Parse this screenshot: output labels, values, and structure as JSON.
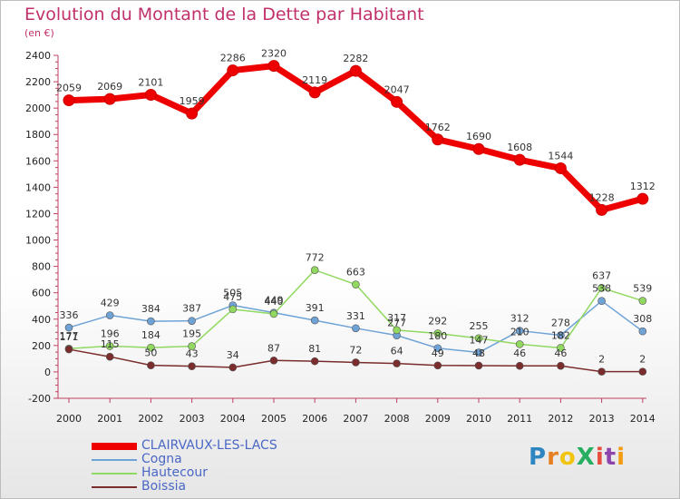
{
  "title": "Evolution du Montant de la Dette par Habitant",
  "subtitle": "(en €)",
  "brand": "ProXiti",
  "chart_data": {
    "type": "line",
    "categories": [
      "2000",
      "2001",
      "2002",
      "2003",
      "2004",
      "2005",
      "2006",
      "2007",
      "2008",
      "2009",
      "2010",
      "2011",
      "2012",
      "2013",
      "2014"
    ],
    "ylim": [
      -200,
      2400
    ],
    "yticks": [
      -200,
      0,
      200,
      400,
      600,
      800,
      1000,
      1200,
      1400,
      1600,
      1800,
      2000,
      2200,
      2400
    ],
    "grid": false,
    "legend_position": "bottom-left",
    "series": [
      {
        "name": "CLAIRVAUX-LES-LACS",
        "color": "#ee0000",
        "values": [
          2059,
          2069,
          2101,
          1959,
          2286,
          2320,
          2119,
          2282,
          2047,
          1762,
          1690,
          1608,
          1544,
          1228,
          1312
        ]
      },
      {
        "name": "Cogna",
        "color": "#6fa3d6",
        "values": [
          336,
          429,
          384,
          387,
          505,
          449,
          391,
          331,
          277,
          180,
          147,
          312,
          278,
          538,
          308
        ]
      },
      {
        "name": "Hautecour",
        "color": "#90d860",
        "values": [
          177,
          196,
          184,
          195,
          475,
          440,
          772,
          663,
          317,
          292,
          255,
          210,
          182,
          637,
          539
        ]
      },
      {
        "name": "Boissia",
        "color": "#7b2c2c",
        "values": [
          171,
          115,
          50,
          43,
          34,
          87,
          81,
          72,
          64,
          49,
          48,
          46,
          46,
          2,
          2
        ]
      }
    ]
  }
}
